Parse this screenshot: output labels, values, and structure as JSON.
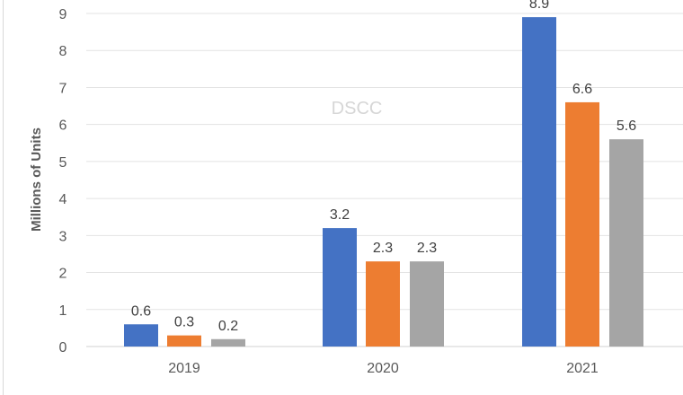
{
  "chart_data": {
    "type": "bar",
    "title": "",
    "xlabel": "",
    "ylabel": "Millions of Units",
    "watermark": "DSCC",
    "categories": [
      "2019",
      "2020",
      "2021"
    ],
    "series": [
      {
        "values": [
          0.6,
          3.2,
          8.9
        ],
        "color": "#4472C4"
      },
      {
        "values": [
          0.3,
          2.3,
          6.6
        ],
        "color": "#ED7D31"
      },
      {
        "values": [
          0.2,
          2.3,
          5.6
        ],
        "color": "#A5A5A5"
      }
    ],
    "ylim": [
      0,
      9
    ],
    "yticks": [
      0,
      1,
      2,
      3,
      4,
      5,
      6,
      7,
      8,
      9
    ],
    "grid": true,
    "data_labels": true
  }
}
